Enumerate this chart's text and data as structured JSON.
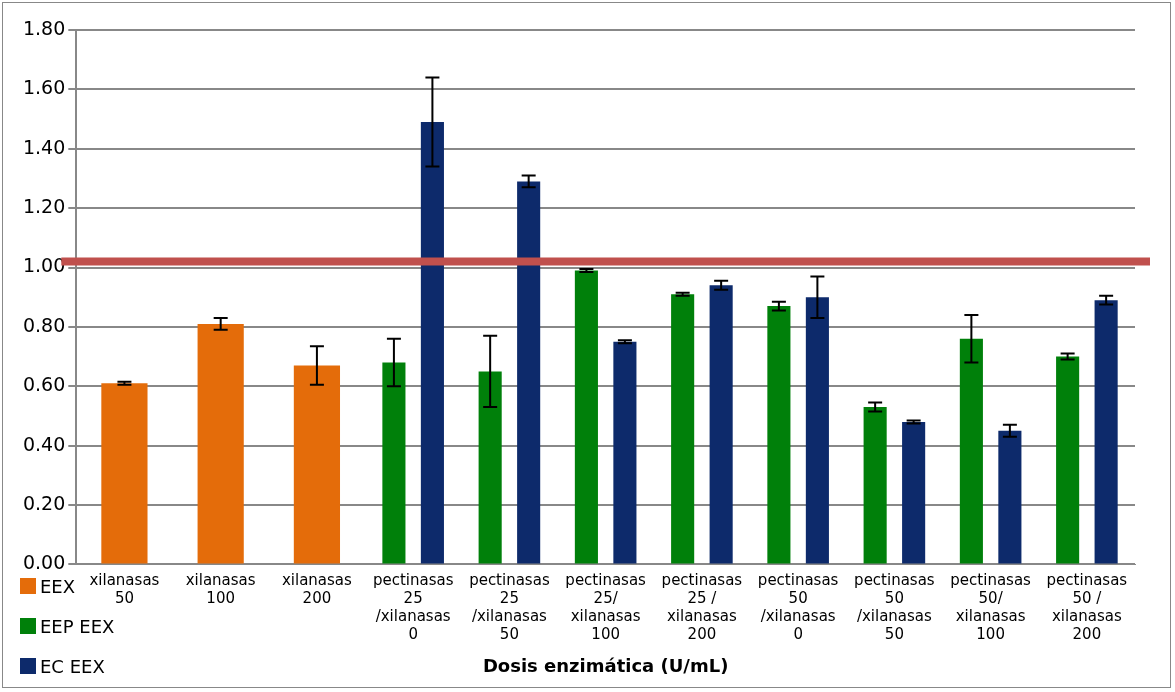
{
  "chart_data": {
    "type": "bar",
    "xlabel": "Dosis enzimática (U/mL)",
    "categories": [
      "xilanasas 50",
      "xilanasas 100",
      "xilanasas 200",
      "pectinasas 25 /xilanasas 0",
      "pectinasas 25 /xilanasas 50",
      "pectinasas 25/ xilanasas 100",
      "pectinasas 25 / xilanasas 200",
      "pectinasas 50 /xilanasas 0",
      "pectinasas 50 /xilanasas 50",
      "pectinasas 50/ xilanasas 100",
      "pectinasas 50 / xilanasas 200"
    ],
    "series": [
      {
        "name": "EEX",
        "color": "#e46c0a",
        "values": [
          0.61,
          0.81,
          0.67,
          null,
          null,
          null,
          null,
          null,
          null,
          null,
          null
        ],
        "errors": [
          0.005,
          0.02,
          0.065,
          null,
          null,
          null,
          null,
          null,
          null,
          null,
          null
        ]
      },
      {
        "name": "EEP EEX",
        "color": "#00800a",
        "values": [
          null,
          null,
          null,
          0.68,
          0.65,
          0.99,
          0.91,
          0.87,
          0.53,
          0.76,
          0.7
        ],
        "errors": [
          null,
          null,
          null,
          0.08,
          0.12,
          0.005,
          0.005,
          0.015,
          0.015,
          0.08,
          0.01
        ]
      },
      {
        "name": "EC EEX",
        "color": "#0d2a6b",
        "values": [
          null,
          null,
          null,
          1.49,
          1.29,
          0.75,
          0.94,
          0.9,
          0.48,
          0.45,
          0.89
        ],
        "errors": [
          null,
          null,
          null,
          0.15,
          0.02,
          0.005,
          0.015,
          0.07,
          0.005,
          0.02,
          0.015
        ]
      }
    ],
    "ylim": [
      0,
      1.8
    ],
    "yticks": [
      {
        "value": 0,
        "label": "0.00"
      },
      {
        "value": 0.2,
        "label": "0.20"
      },
      {
        "value": 0.4,
        "label": "0.40"
      },
      {
        "value": 0.6,
        "label": "0.60"
      },
      {
        "value": 0.8,
        "label": "0.80"
      },
      {
        "value": 1,
        "label": "1.00"
      },
      {
        "value": 1.2,
        "label": "1.20"
      },
      {
        "value": 1.4,
        "label": "1.40"
      },
      {
        "value": 1.6,
        "label": "1.60"
      },
      {
        "value": 1.8,
        "label": "1.80"
      }
    ],
    "ref_lines": [
      {
        "axis": "y",
        "value": 1.02,
        "color": "#c0504d"
      }
    ],
    "grid": "y",
    "legend": "bottom left"
  }
}
